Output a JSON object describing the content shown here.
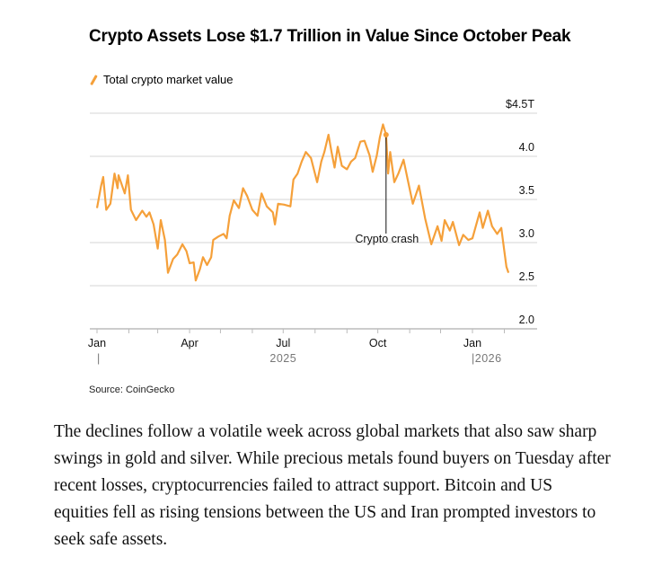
{
  "chart_data": {
    "type": "line",
    "title": "Crypto Assets Lose $1.7 Trillion in Value Since October Peak",
    "legend": [
      {
        "name": "Total crypto market value",
        "color": "#f5a03a"
      }
    ],
    "legend_placement": "top-left",
    "ylabel": "",
    "xlabel": "",
    "ylim": [
      2.0,
      4.5
    ],
    "y_ticks": [
      "2.0",
      "2.5",
      "3.0",
      "3.5",
      "4.0",
      "$4.5T"
    ],
    "y_tick_values": [
      2.0,
      2.5,
      3.0,
      3.5,
      4.0,
      4.5
    ],
    "y_axis_side": "right",
    "x_tick_labels": [
      "Jan",
      "Apr",
      "Jul",
      "Oct",
      "Jan"
    ],
    "x_tick_dates": [
      "2025-01-01",
      "2025-04-01",
      "2025-07-01",
      "2025-10-01",
      "2026-01-01"
    ],
    "year_labels": [
      {
        "label": "2025",
        "date": "2025-07-01"
      },
      {
        "label": "|2026",
        "date": "2026-01-01"
      },
      {
        "label": "|",
        "date": "2025-01-01"
      }
    ],
    "grid": true,
    "annotation": {
      "label": "Crypto crash",
      "date": "2025-10-09",
      "value": 4.25
    },
    "series": [
      {
        "name": "Total crypto market value",
        "color": "#f5a03a",
        "points": [
          [
            "2025-01-01",
            3.4
          ],
          [
            "2025-01-05",
            3.66
          ],
          [
            "2025-01-07",
            3.76
          ],
          [
            "2025-01-10",
            3.38
          ],
          [
            "2025-01-14",
            3.45
          ],
          [
            "2025-01-18",
            3.8
          ],
          [
            "2025-01-21",
            3.63
          ],
          [
            "2025-01-22",
            3.78
          ],
          [
            "2025-01-28",
            3.57
          ],
          [
            "2025-01-31",
            3.78
          ],
          [
            "2025-02-03",
            3.38
          ],
          [
            "2025-02-08",
            3.26
          ],
          [
            "2025-02-14",
            3.37
          ],
          [
            "2025-02-18",
            3.3
          ],
          [
            "2025-02-21",
            3.35
          ],
          [
            "2025-02-25",
            3.21
          ],
          [
            "2025-03-01",
            2.93
          ],
          [
            "2025-03-04",
            3.26
          ],
          [
            "2025-03-08",
            3.03
          ],
          [
            "2025-03-11",
            2.65
          ],
          [
            "2025-03-16",
            2.81
          ],
          [
            "2025-03-20",
            2.86
          ],
          [
            "2025-03-25",
            2.98
          ],
          [
            "2025-03-29",
            2.9
          ],
          [
            "2025-04-01",
            2.76
          ],
          [
            "2025-04-05",
            2.77
          ],
          [
            "2025-04-07",
            2.56
          ],
          [
            "2025-04-11",
            2.69
          ],
          [
            "2025-04-14",
            2.83
          ],
          [
            "2025-04-18",
            2.74
          ],
          [
            "2025-04-22",
            2.83
          ],
          [
            "2025-04-24",
            3.03
          ],
          [
            "2025-04-29",
            3.07
          ],
          [
            "2025-05-04",
            3.1
          ],
          [
            "2025-05-07",
            3.05
          ],
          [
            "2025-05-10",
            3.31
          ],
          [
            "2025-05-14",
            3.49
          ],
          [
            "2025-05-19",
            3.4
          ],
          [
            "2025-05-23",
            3.63
          ],
          [
            "2025-05-27",
            3.54
          ],
          [
            "2025-06-01",
            3.38
          ],
          [
            "2025-06-06",
            3.31
          ],
          [
            "2025-06-10",
            3.57
          ],
          [
            "2025-06-15",
            3.42
          ],
          [
            "2025-06-21",
            3.35
          ],
          [
            "2025-06-23",
            3.21
          ],
          [
            "2025-06-26",
            3.45
          ],
          [
            "2025-07-02",
            3.44
          ],
          [
            "2025-07-08",
            3.42
          ],
          [
            "2025-07-11",
            3.73
          ],
          [
            "2025-07-15",
            3.8
          ],
          [
            "2025-07-19",
            3.94
          ],
          [
            "2025-07-23",
            4.05
          ],
          [
            "2025-07-28",
            3.98
          ],
          [
            "2025-08-03",
            3.7
          ],
          [
            "2025-08-07",
            3.94
          ],
          [
            "2025-08-10",
            4.05
          ],
          [
            "2025-08-14",
            4.25
          ],
          [
            "2025-08-17",
            4.05
          ],
          [
            "2025-08-20",
            3.87
          ],
          [
            "2025-08-23",
            4.11
          ],
          [
            "2025-08-27",
            3.89
          ],
          [
            "2025-09-01",
            3.85
          ],
          [
            "2025-09-05",
            3.94
          ],
          [
            "2025-09-09",
            3.98
          ],
          [
            "2025-09-14",
            4.17
          ],
          [
            "2025-09-18",
            4.18
          ],
          [
            "2025-09-23",
            4.01
          ],
          [
            "2025-09-26",
            3.82
          ],
          [
            "2025-09-30",
            4.01
          ],
          [
            "2025-10-03",
            4.22
          ],
          [
            "2025-10-06",
            4.37
          ],
          [
            "2025-10-09",
            4.25
          ],
          [
            "2025-10-11",
            3.8
          ],
          [
            "2025-10-13",
            4.05
          ],
          [
            "2025-10-17",
            3.7
          ],
          [
            "2025-10-21",
            3.8
          ],
          [
            "2025-10-26",
            3.96
          ],
          [
            "2025-10-30",
            3.73
          ],
          [
            "2025-11-04",
            3.45
          ],
          [
            "2025-11-10",
            3.66
          ],
          [
            "2025-11-16",
            3.28
          ],
          [
            "2025-11-22",
            2.98
          ],
          [
            "2025-11-28",
            3.19
          ],
          [
            "2025-12-02",
            3.02
          ],
          [
            "2025-12-05",
            3.26
          ],
          [
            "2025-12-10",
            3.14
          ],
          [
            "2025-12-13",
            3.24
          ],
          [
            "2025-12-19",
            2.97
          ],
          [
            "2025-12-23",
            3.09
          ],
          [
            "2025-12-28",
            3.03
          ],
          [
            "2026-01-01",
            3.05
          ],
          [
            "2026-01-08",
            3.35
          ],
          [
            "2026-01-11",
            3.17
          ],
          [
            "2026-01-16",
            3.37
          ],
          [
            "2026-01-20",
            3.19
          ],
          [
            "2026-01-25",
            3.1
          ],
          [
            "2026-01-29",
            3.17
          ],
          [
            "2026-02-01",
            2.9
          ],
          [
            "2026-02-03",
            2.72
          ],
          [
            "2026-02-05",
            2.65
          ]
        ]
      }
    ],
    "source": "Source: CoinGecko"
  },
  "article": {
    "paragraph": "The declines follow a volatile week across global markets that also saw sharp swings in gold and silver. While precious metals found buyers on Tuesday after recent losses, cryptocurrencies failed to attract support. Bitcoin and US equities fell as rising tensions between the US and Iran prompted investors to seek safe assets."
  }
}
